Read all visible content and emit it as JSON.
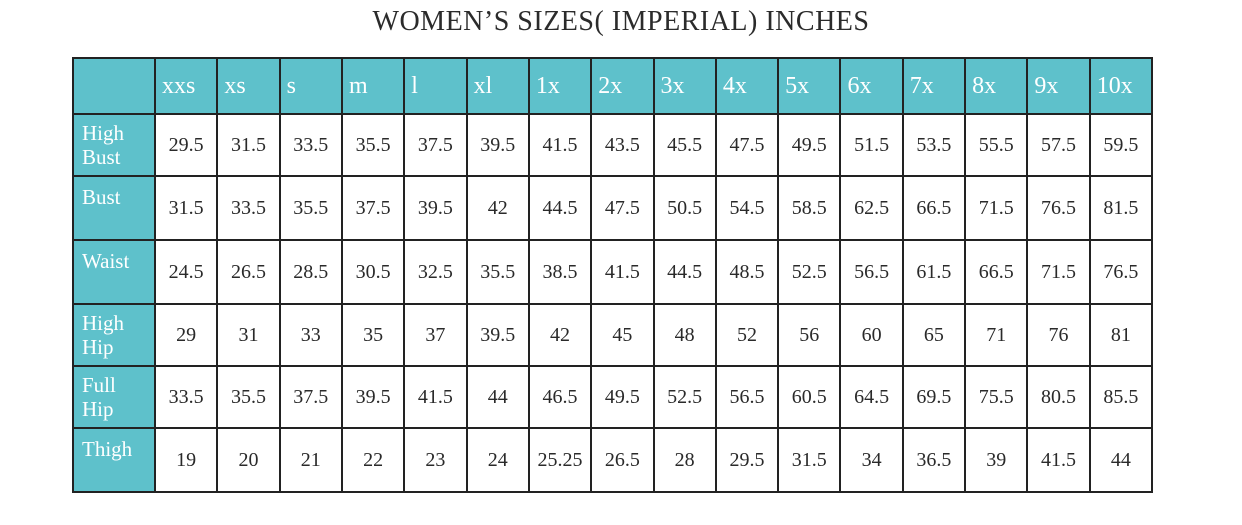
{
  "title": "WOMEN’S SIZES( IMPERIAL) INCHES",
  "colors": {
    "header_bg": "#5ec1cb",
    "header_text": "#ffffff",
    "border": "#222222"
  },
  "sizes": [
    "xxs",
    "xs",
    "s",
    "m",
    "l",
    "xl",
    "1x",
    "2x",
    "3x",
    "4x",
    "5x",
    "6x",
    "7x",
    "8x",
    "9x",
    "10x"
  ],
  "rows": [
    {
      "label": "High Bust",
      "values": [
        "29.5",
        "31.5",
        "33.5",
        "35.5",
        "37.5",
        "39.5",
        "41.5",
        "43.5",
        "45.5",
        "47.5",
        "49.5",
        "51.5",
        "53.5",
        "55.5",
        "57.5",
        "59.5"
      ]
    },
    {
      "label": "Bust",
      "values": [
        "31.5",
        "33.5",
        "35.5",
        "37.5",
        "39.5",
        "42",
        "44.5",
        "47.5",
        "50.5",
        "54.5",
        "58.5",
        "62.5",
        "66.5",
        "71.5",
        "76.5",
        "81.5"
      ]
    },
    {
      "label": "Waist",
      "values": [
        "24.5",
        "26.5",
        "28.5",
        "30.5",
        "32.5",
        "35.5",
        "38.5",
        "41.5",
        "44.5",
        "48.5",
        "52.5",
        "56.5",
        "61.5",
        "66.5",
        "71.5",
        "76.5"
      ]
    },
    {
      "label": "High Hip",
      "values": [
        "29",
        "31",
        "33",
        "35",
        "37",
        "39.5",
        "42",
        "45",
        "48",
        "52",
        "56",
        "60",
        "65",
        "71",
        "76",
        "81"
      ]
    },
    {
      "label": "Full Hip",
      "values": [
        "33.5",
        "35.5",
        "37.5",
        "39.5",
        "41.5",
        "44",
        "46.5",
        "49.5",
        "52.5",
        "56.5",
        "60.5",
        "64.5",
        "69.5",
        "75.5",
        "80.5",
        "85.5"
      ]
    },
    {
      "label": "Thigh",
      "values": [
        "19",
        "20",
        "21",
        "22",
        "23",
        "24",
        "25.25",
        "26.5",
        "28",
        "29.5",
        "31.5",
        "34",
        "36.5",
        "39",
        "41.5",
        "44"
      ]
    }
  ]
}
